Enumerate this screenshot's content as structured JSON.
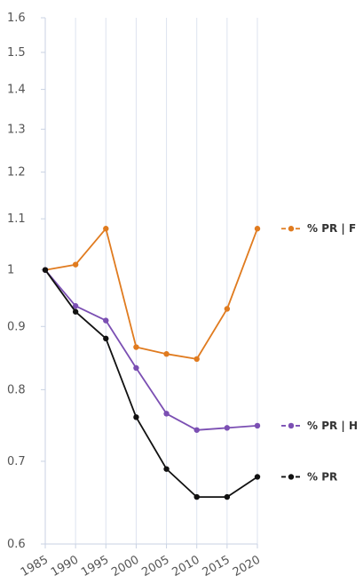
{
  "chart_data": {
    "type": "line",
    "title": "",
    "xlabel": "",
    "ylabel": "",
    "x": [
      1985,
      1990,
      1995,
      2000,
      2005,
      2010,
      2015,
      2020
    ],
    "x_tick_labels": [
      "1985",
      "1990",
      "1995",
      "2000",
      "2005",
      "2010",
      "2015",
      "2020"
    ],
    "y_scale": "log",
    "ylim": [
      0.6,
      1.6
    ],
    "y_ticks": [
      0.6,
      0.7,
      0.8,
      0.9,
      1.0,
      1.1,
      1.2,
      1.3,
      1.4,
      1.5,
      1.6
    ],
    "y_tick_labels": [
      "0.6",
      "0.7",
      "0.8",
      "0.9",
      "1",
      "1.1",
      "1.2",
      "1.3",
      "1.4",
      "1.5",
      "1.6"
    ],
    "grid": "vertical",
    "legend_position": "right",
    "series": [
      {
        "name": "% PR | F",
        "color": "#e07b1f",
        "values": [
          1.0,
          1.01,
          1.08,
          0.866,
          0.855,
          0.847,
          0.93,
          1.08
        ]
      },
      {
        "name": "% PR | H",
        "color": "#7b4fb3",
        "values": [
          1.0,
          0.935,
          0.91,
          0.833,
          0.765,
          0.742,
          0.745,
          0.748
        ]
      },
      {
        "name": "% PR",
        "color": "#111111",
        "values": [
          1.0,
          0.925,
          0.88,
          0.76,
          0.69,
          0.655,
          0.655,
          0.68
        ]
      }
    ]
  }
}
